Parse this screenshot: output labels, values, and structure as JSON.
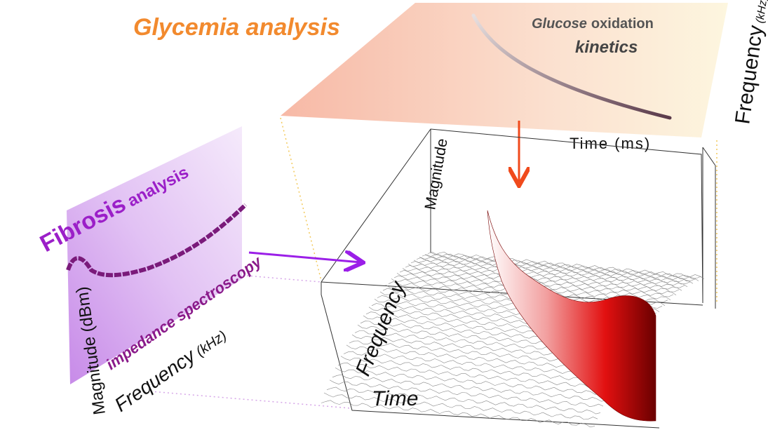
{
  "glycemia_panel": {
    "title": "Glycemia analysis",
    "label_italic": "Glucose",
    "label_rest": "oxidation",
    "label_line2": "kinetics",
    "y_axis": "Frequency",
    "y_unit": "(kHz)",
    "x_axis": "Time (ms)"
  },
  "surface_plot": {
    "z_axis": "Magnitude",
    "y_axis": "Frequency",
    "x_axis": "Time"
  },
  "fibrosis_panel": {
    "title_bold": "Fibrosis",
    "title_rest": "analysis",
    "curve_label": "impedance spectroscopy",
    "x_axis": "Frequency",
    "x_unit": "(kHz)",
    "y_axis": "Magnitude (dBm)"
  }
}
